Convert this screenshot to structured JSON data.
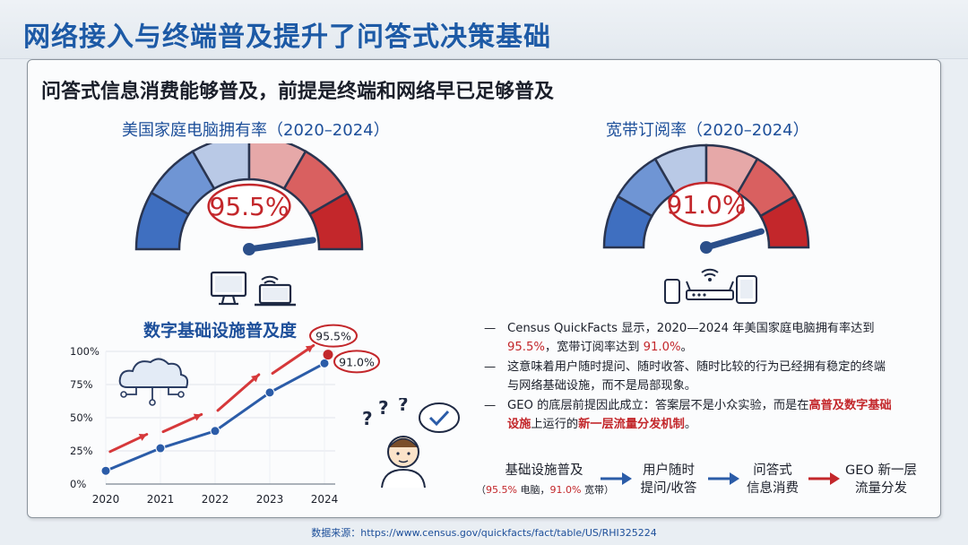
{
  "title": "网络接入与终端普及提升了问答式决策基础",
  "subtitle": "问答式信息消费能够普及，前提是终端和网络早已足够普及",
  "gauges": [
    {
      "title": "美国家庭电脑拥有率（2020–2024）",
      "value": 95.5,
      "value_label": "95.5%",
      "icon_names": [
        "desktop-computer-icon",
        "wifi-icon",
        "laptop-icon"
      ]
    },
    {
      "title": "宽带订阅率（2020–2024）",
      "value": 91.0,
      "value_label": "91.0%",
      "icon_names": [
        "smartphone-icon",
        "wifi-router-icon",
        "tablet-icon"
      ]
    }
  ],
  "chart_data": {
    "type": "line",
    "title": "数字基础设施普及度",
    "x": [
      "2020",
      "2021",
      "2022",
      "2023",
      "2024"
    ],
    "series": [
      {
        "values": [
          10,
          27,
          40,
          69,
          91
        ]
      }
    ],
    "ylim": [
      0,
      100
    ],
    "yticks": [
      "0%",
      "25%",
      "50%",
      "75%",
      "100%"
    ],
    "end_labels": [
      {
        "label": "95.5%",
        "value": 95.5
      },
      {
        "label": "91.0%",
        "value": 91.0
      }
    ],
    "grid": true,
    "colors": {
      "line": "#2b5ca8",
      "arrow": "#d6383a",
      "marker": "#c3272b"
    }
  },
  "notes": {
    "n1_a": "Census QuickFacts 显示，2020—2024 年美国家庭电脑拥有率达到",
    "n1_b": "95.5%",
    "n1_c": "，宽带订阅率达到",
    "n1_d": "91.0%",
    "n1_e": "。",
    "n2": "这意味着用户随时提问、随时收答、随时比较的行为已经拥有稳定的终端与网络基础设施，而不是局部现象。",
    "n3_a": "GEO 的底层前提因此成立：答案层不是小众实验，而是在",
    "n3_b": "高普及数字基础设施",
    "n3_c": "上运行的",
    "n3_d": "新一层流量分发机制",
    "n3_e": "。"
  },
  "flow": {
    "step1": "基础设施普及",
    "step1_pre": "（",
    "step1_v1": "95.5%",
    "step1_m": " 电脑，",
    "step1_v2": "91.0%",
    "step1_post": " 宽带）",
    "step2_l1": "用户随时",
    "step2_l2": "提问/收答",
    "step3_l1": "问答式",
    "step3_l2": "信息消费",
    "step4_l1": "GEO 新一层",
    "step4_l2": "流量分发"
  },
  "source": "数据来源：https://www.census.gov/quickfacts/fact/table/US/RHI325224",
  "colors": {
    "title": "#1d5aa6",
    "accent_red": "#c3272b",
    "accent_blue": "#2b5ca8"
  }
}
